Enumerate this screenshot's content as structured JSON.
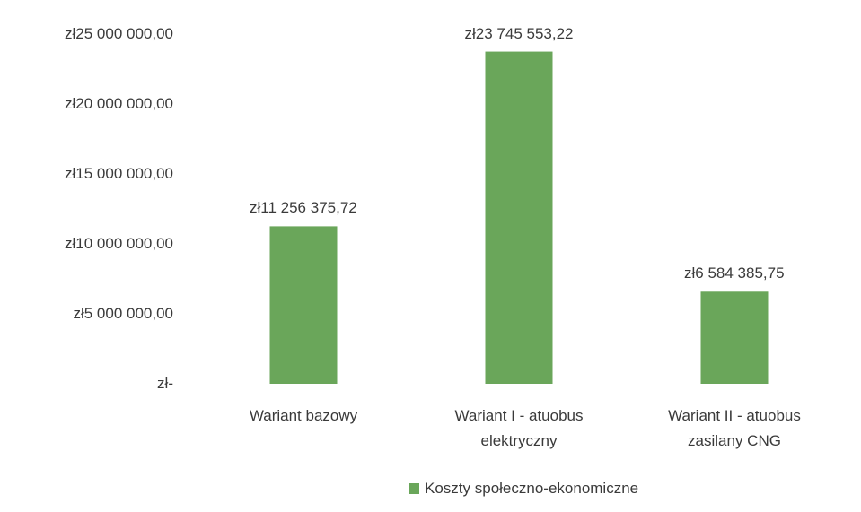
{
  "chart_data": {
    "type": "bar",
    "categories": [
      "Wariant bazowy",
      "Wariant I - atuobus elektryczny",
      "Wariant II - atuobus zasilany CNG"
    ],
    "series": [
      {
        "name": "Koszty społeczno-ekonomiczne",
        "color": "#6aa65a",
        "values": [
          11256375.72,
          23745553.22,
          6584385.75
        ],
        "value_labels": [
          "zł11 256 375,72",
          "zł23 745 553,22",
          "zł6 584 385,75"
        ]
      }
    ],
    "ylim": [
      0,
      25000000
    ],
    "yticks": [
      {
        "value": 0,
        "label": "zł-"
      },
      {
        "value": 5000000,
        "label": "zł5 000 000,00"
      },
      {
        "value": 10000000,
        "label": "zł10 000 000,00"
      },
      {
        "value": 15000000,
        "label": "zł15 000 000,00"
      },
      {
        "value": 20000000,
        "label": "zł20 000 000,00"
      },
      {
        "value": 25000000,
        "label": "zł25 000 000,00"
      }
    ],
    "grid": false,
    "legend": "bottom"
  }
}
